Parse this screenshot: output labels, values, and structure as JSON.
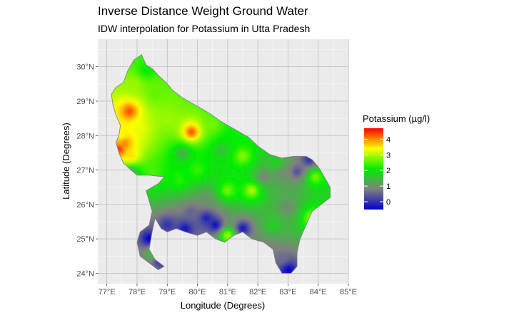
{
  "title": "Inverse Distance Weight Ground Water",
  "subtitle": "IDW interpolation for Potassium in Utta Pradesh",
  "x_axis_title": "Longitude (Degrees)",
  "y_axis_title": "Latitude (Degrees)",
  "x_ticks": [
    "77°E",
    "78°E",
    "79°E",
    "80°E",
    "81°E",
    "82°E",
    "83°E",
    "84°E",
    "85°E"
  ],
  "y_ticks": [
    "24°N",
    "25°N",
    "26°N",
    "27°N",
    "28°N",
    "29°N",
    "30°N"
  ],
  "legend": {
    "title": "Potassium (µg/l)",
    "ticks": [
      "4",
      "3",
      "2",
      "1",
      "0"
    ],
    "colors": [
      "#0000cc",
      "#808080",
      "#00ee00",
      "#ffff00",
      "#ff0000"
    ]
  },
  "chart_data": {
    "type": "heatmap",
    "title": "Inverse Distance Weight Ground Water",
    "subtitle": "IDW interpolation for Potassium in Utta Pradesh",
    "xlabel": "Longitude (Degrees)",
    "ylabel": "Latitude (Degrees)",
    "xlim": [
      76.7,
      85.0
    ],
    "ylim": [
      23.7,
      30.8
    ],
    "value_range": [
      -0.5,
      4.7
    ],
    "background_level": 1.8,
    "grid": true,
    "legend_position": "right",
    "boundary": [
      [
        77.55,
        29.55
      ],
      [
        77.7,
        29.9
      ],
      [
        77.9,
        30.2
      ],
      [
        78.15,
        30.35
      ],
      [
        78.2,
        30.25
      ],
      [
        78.3,
        30.05
      ],
      [
        78.5,
        29.95
      ],
      [
        78.7,
        29.75
      ],
      [
        78.95,
        29.55
      ],
      [
        79.2,
        29.3
      ],
      [
        79.5,
        29.1
      ],
      [
        79.8,
        28.95
      ],
      [
        80.1,
        28.8
      ],
      [
        80.4,
        28.65
      ],
      [
        80.8,
        28.4
      ],
      [
        81.3,
        28.15
      ],
      [
        81.7,
        27.95
      ],
      [
        82.0,
        27.7
      ],
      [
        82.4,
        27.45
      ],
      [
        82.8,
        27.35
      ],
      [
        83.2,
        27.4
      ],
      [
        83.6,
        27.4
      ],
      [
        83.8,
        27.3
      ],
      [
        84.0,
        27.1
      ],
      [
        84.2,
        26.8
      ],
      [
        84.4,
        26.5
      ],
      [
        84.4,
        26.2
      ],
      [
        84.1,
        26.0
      ],
      [
        83.8,
        25.8
      ],
      [
        83.6,
        25.4
      ],
      [
        83.4,
        25.0
      ],
      [
        83.3,
        24.6
      ],
      [
        83.3,
        24.2
      ],
      [
        83.1,
        24.0
      ],
      [
        82.8,
        24.0
      ],
      [
        82.6,
        24.3
      ],
      [
        82.5,
        24.7
      ],
      [
        82.2,
        24.9
      ],
      [
        81.8,
        25.0
      ],
      [
        81.5,
        25.2
      ],
      [
        81.2,
        25.1
      ],
      [
        80.9,
        24.9
      ],
      [
        80.6,
        25.0
      ],
      [
        80.3,
        25.2
      ],
      [
        80.0,
        25.1
      ],
      [
        79.6,
        25.2
      ],
      [
        79.3,
        25.3
      ],
      [
        79.0,
        25.2
      ],
      [
        78.8,
        25.3
      ],
      [
        78.6,
        25.6
      ],
      [
        78.5,
        25.2
      ],
      [
        78.4,
        24.7
      ],
      [
        78.6,
        24.4
      ],
      [
        78.9,
        24.2
      ],
      [
        78.7,
        24.1
      ],
      [
        78.4,
        24.3
      ],
      [
        78.1,
        24.5
      ],
      [
        78.0,
        24.9
      ],
      [
        78.1,
        25.2
      ],
      [
        78.4,
        25.4
      ],
      [
        78.5,
        25.8
      ],
      [
        78.3,
        26.4
      ],
      [
        78.7,
        26.6
      ],
      [
        78.9,
        26.8
      ],
      [
        78.4,
        26.85
      ],
      [
        78.0,
        26.85
      ],
      [
        77.8,
        27.0
      ],
      [
        77.55,
        27.2
      ],
      [
        77.4,
        27.5
      ],
      [
        77.3,
        27.8
      ],
      [
        77.4,
        28.0
      ],
      [
        77.45,
        28.3
      ],
      [
        77.3,
        28.6
      ],
      [
        77.2,
        28.9
      ],
      [
        77.15,
        29.2
      ],
      [
        77.3,
        29.4
      ]
    ],
    "samples": [
      {
        "lon": 77.4,
        "lat": 27.6,
        "k": 4.5
      },
      {
        "lon": 77.6,
        "lat": 27.8,
        "k": 4.0
      },
      {
        "lon": 77.5,
        "lat": 28.0,
        "k": 3.3
      },
      {
        "lon": 77.8,
        "lat": 27.4,
        "k": 3.5
      },
      {
        "lon": 77.75,
        "lat": 28.7,
        "k": 4.3
      },
      {
        "lon": 78.1,
        "lat": 28.2,
        "k": 3.2
      },
      {
        "lon": 77.9,
        "lat": 29.5,
        "k": 2.8
      },
      {
        "lon": 78.6,
        "lat": 29.2,
        "k": 2.5
      },
      {
        "lon": 79.8,
        "lat": 28.1,
        "k": 4.3
      },
      {
        "lon": 79.0,
        "lat": 28.5,
        "k": 2.8
      },
      {
        "lon": 80.5,
        "lat": 28.3,
        "k": 2.6
      },
      {
        "lon": 78.5,
        "lat": 26.9,
        "k": 2.4
      },
      {
        "lon": 79.5,
        "lat": 27.5,
        "k": 1.3
      },
      {
        "lon": 80.8,
        "lat": 27.6,
        "k": 1.5
      },
      {
        "lon": 81.5,
        "lat": 27.4,
        "k": 2.7
      },
      {
        "lon": 81.0,
        "lat": 26.4,
        "k": 2.6
      },
      {
        "lon": 81.8,
        "lat": 26.4,
        "k": 2.9
      },
      {
        "lon": 80.3,
        "lat": 26.2,
        "k": 1.0
      },
      {
        "lon": 82.2,
        "lat": 26.8,
        "k": 0.8
      },
      {
        "lon": 82.8,
        "lat": 26.9,
        "k": 0.9
      },
      {
        "lon": 83.3,
        "lat": 26.95,
        "k": 0.3
      },
      {
        "lon": 83.7,
        "lat": 27.3,
        "k": 0.0
      },
      {
        "lon": 83.9,
        "lat": 26.8,
        "k": 2.6
      },
      {
        "lon": 83.8,
        "lat": 25.6,
        "k": 2.8
      },
      {
        "lon": 83.0,
        "lat": 25.9,
        "k": 0.9
      },
      {
        "lon": 82.5,
        "lat": 25.4,
        "k": 1.7
      },
      {
        "lon": 82.3,
        "lat": 24.7,
        "k": 0.7
      },
      {
        "lon": 83.0,
        "lat": 24.1,
        "k": -0.5
      },
      {
        "lon": 82.8,
        "lat": 24.4,
        "k": 0.6
      },
      {
        "lon": 81.5,
        "lat": 25.3,
        "k": -0.3
      },
      {
        "lon": 80.6,
        "lat": 25.4,
        "k": -0.4
      },
      {
        "lon": 80.3,
        "lat": 25.6,
        "k": -0.2
      },
      {
        "lon": 79.6,
        "lat": 25.3,
        "k": -0.3
      },
      {
        "lon": 79.0,
        "lat": 25.4,
        "k": 0.0
      },
      {
        "lon": 79.8,
        "lat": 25.8,
        "k": 0.5
      },
      {
        "lon": 81.0,
        "lat": 25.1,
        "k": 2.9
      },
      {
        "lon": 78.4,
        "lat": 25.0,
        "k": -0.5
      },
      {
        "lon": 78.6,
        "lat": 24.6,
        "k": 2.1
      },
      {
        "lon": 78.75,
        "lat": 24.4,
        "k": -0.2
      },
      {
        "lon": 77.8,
        "lat": 26.9,
        "k": 0.9
      },
      {
        "lon": 79.4,
        "lat": 26.7,
        "k": 2.2
      },
      {
        "lon": 80.0,
        "lat": 27.0,
        "k": 2.3
      },
      {
        "lon": 81.2,
        "lat": 28.0,
        "k": 2.0
      },
      {
        "lon": 78.3,
        "lat": 29.9,
        "k": 2.0
      },
      {
        "lon": 82.6,
        "lat": 27.2,
        "k": 1.7
      }
    ]
  }
}
